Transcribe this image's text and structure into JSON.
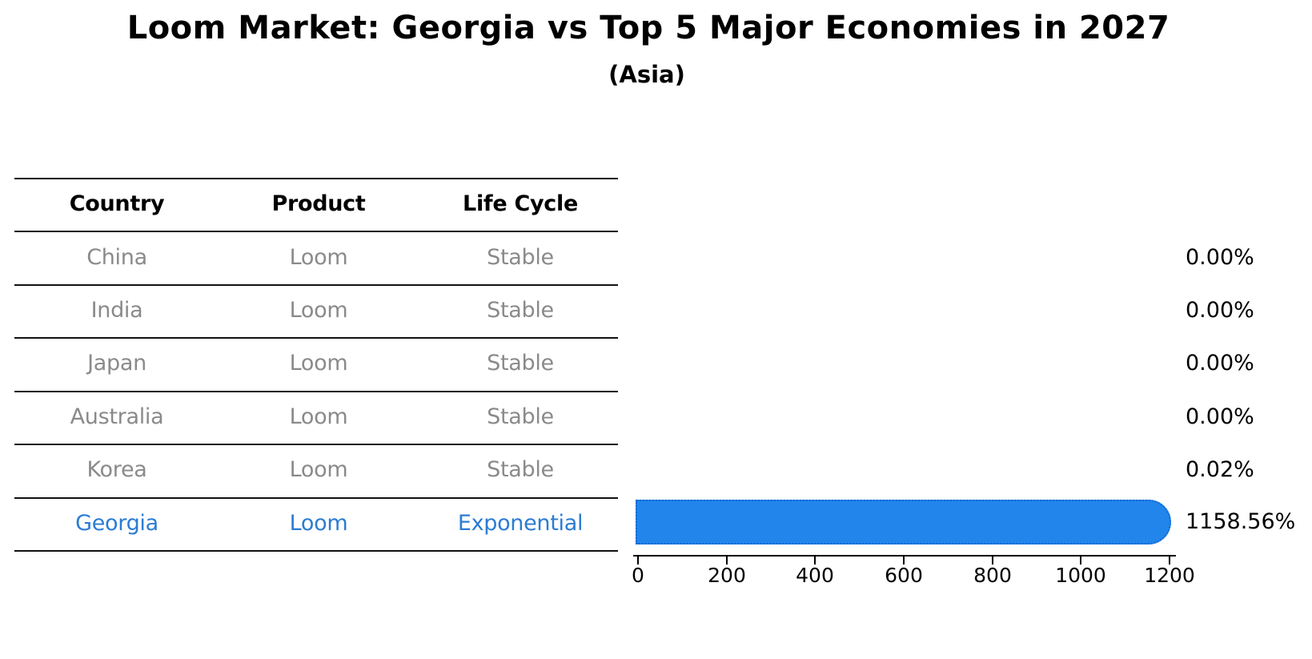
{
  "title": "Loom Market: Georgia vs Top 5 Major Economies in 2027",
  "subtitle": "(Asia)",
  "table": {
    "headers": [
      "Country",
      "Product",
      "Life Cycle"
    ],
    "rows": [
      {
        "country": "China",
        "product": "Loom",
        "life_cycle": "Stable",
        "highlighted": false
      },
      {
        "country": "India",
        "product": "Loom",
        "life_cycle": "Stable",
        "highlighted": false
      },
      {
        "country": "Japan",
        "product": "Loom",
        "life_cycle": "Stable",
        "highlighted": false
      },
      {
        "country": "Australia",
        "product": "Loom",
        "life_cycle": "Stable",
        "highlighted": false
      },
      {
        "country": "Korea",
        "product": "Loom",
        "life_cycle": "Stable",
        "highlighted": false
      },
      {
        "country": "Georgia",
        "product": "Loom",
        "life_cycle": "Exponential",
        "highlighted": true
      }
    ]
  },
  "chart_data": {
    "type": "bar",
    "orientation": "horizontal",
    "categories": [
      "China",
      "India",
      "Japan",
      "Australia",
      "Korea",
      "Georgia"
    ],
    "values": [
      0.0,
      0.0,
      0.0,
      0.0,
      0.02,
      1158.56
    ],
    "bar_labels": [
      "0.00%",
      "0.00%",
      "0.00%",
      "0.00%",
      "0.02%",
      "1158.56%"
    ],
    "x_ticks": [
      "0",
      "200",
      "400",
      "600",
      "800",
      "1000",
      "1200"
    ],
    "xlim": [
      0,
      1200
    ],
    "grid": false,
    "legend": "none",
    "bar_color": "#2185ec",
    "bar_edge_color": "#1566d0",
    "highlight_text_color": "#2b7cd3",
    "table_text_color": "#8a8a8a"
  }
}
